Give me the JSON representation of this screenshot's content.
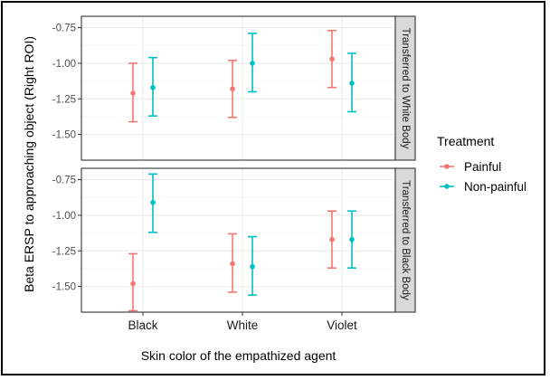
{
  "chart_data": {
    "type": "scatter",
    "subtype": "point-with-errorbars, faceted",
    "xlabel": "Skin color of the empathized agent",
    "ylabel": "Beta ERSP to approaching object (Right ROI)",
    "categories": [
      "Black",
      "White",
      "Violet"
    ],
    "ylim": [
      -1.68,
      -0.67
    ],
    "yticks": [
      -0.75,
      -1.0,
      -1.25,
      -1.5
    ],
    "ytick_labels": [
      "-0.75",
      "-1.00",
      "-1.25",
      "-1.50"
    ],
    "grid": true,
    "legend": {
      "title": "Treatment",
      "placement": "right",
      "entries": [
        "Painful",
        "Non-painful"
      ]
    },
    "colors": {
      "Painful": "#F8766D",
      "Non-painful": "#00BFC4"
    },
    "facets": [
      {
        "strip_label": "Transferred to White Body",
        "series": [
          {
            "name": "Painful",
            "points": [
              {
                "x": "Black",
                "y": -1.21,
                "ymin": -1.41,
                "ymax": -1.0
              },
              {
                "x": "White",
                "y": -1.18,
                "ymin": -1.38,
                "ymax": -0.98
              },
              {
                "x": "Violet",
                "y": -0.97,
                "ymin": -1.17,
                "ymax": -0.77
              }
            ]
          },
          {
            "name": "Non-painful",
            "points": [
              {
                "x": "Black",
                "y": -1.17,
                "ymin": -1.37,
                "ymax": -0.96
              },
              {
                "x": "White",
                "y": -1.0,
                "ymin": -1.2,
                "ymax": -0.79
              },
              {
                "x": "Violet",
                "y": -1.14,
                "ymin": -1.34,
                "ymax": -0.93
              }
            ]
          }
        ]
      },
      {
        "strip_label": "Transferred to Black Body",
        "series": [
          {
            "name": "Painful",
            "points": [
              {
                "x": "Black",
                "y": -1.48,
                "ymin": -1.67,
                "ymax": -1.27
              },
              {
                "x": "White",
                "y": -1.34,
                "ymin": -1.54,
                "ymax": -1.13
              },
              {
                "x": "Violet",
                "y": -1.17,
                "ymin": -1.37,
                "ymax": -0.97
              }
            ]
          },
          {
            "name": "Non-painful",
            "points": [
              {
                "x": "Black",
                "y": -0.91,
                "ymin": -1.12,
                "ymax": -0.71
              },
              {
                "x": "White",
                "y": -1.36,
                "ymin": -1.56,
                "ymax": -1.15
              },
              {
                "x": "Violet",
                "y": -1.17,
                "ymin": -1.37,
                "ymax": -0.97
              }
            ]
          }
        ]
      }
    ]
  }
}
